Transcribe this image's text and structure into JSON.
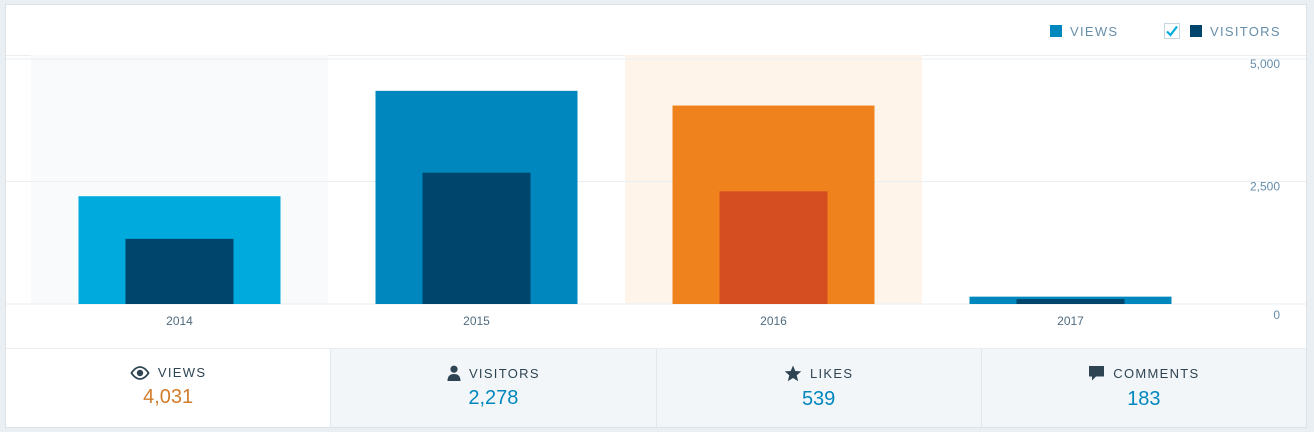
{
  "legend": {
    "views": {
      "label": "Views",
      "color": "#0087be"
    },
    "visitors": {
      "label": "Visitors",
      "color": "#00456c",
      "checked": true
    }
  },
  "chart_data": {
    "type": "bar",
    "categories": [
      "2014",
      "2015",
      "2016",
      "2017"
    ],
    "series": [
      {
        "name": "Views",
        "values": [
          2200,
          4350,
          4050,
          150
        ]
      },
      {
        "name": "Visitors",
        "values": [
          1330,
          2680,
          2300,
          100
        ]
      }
    ],
    "ylim": [
      0,
      5000
    ],
    "yticks": [
      "5,000",
      "2,500",
      "0"
    ],
    "ytick_values": [
      5000,
      2500,
      0
    ],
    "highlighted_category": "2016",
    "hovered_category": "2014",
    "grid": true,
    "bar_colors": {
      "views": [
        "#00aadc",
        "#0087be",
        "#f0821e",
        "#0087be"
      ],
      "visitors": [
        "#00456c",
        "#00456c",
        "#d54e21",
        "#00456c"
      ]
    },
    "column_backgrounds": {
      "2014": "#f9fafb",
      "2016": "#fef4ea"
    }
  },
  "tabs": [
    {
      "label": "Views",
      "value": "4,031",
      "icon": "eye-icon",
      "active": true
    },
    {
      "label": "Visitors",
      "value": "2,278",
      "icon": "person-icon",
      "active": false
    },
    {
      "label": "Likes",
      "value": "539",
      "icon": "star-icon",
      "active": false
    },
    {
      "label": "Comments",
      "value": "183",
      "icon": "comment-icon",
      "active": false
    }
  ]
}
